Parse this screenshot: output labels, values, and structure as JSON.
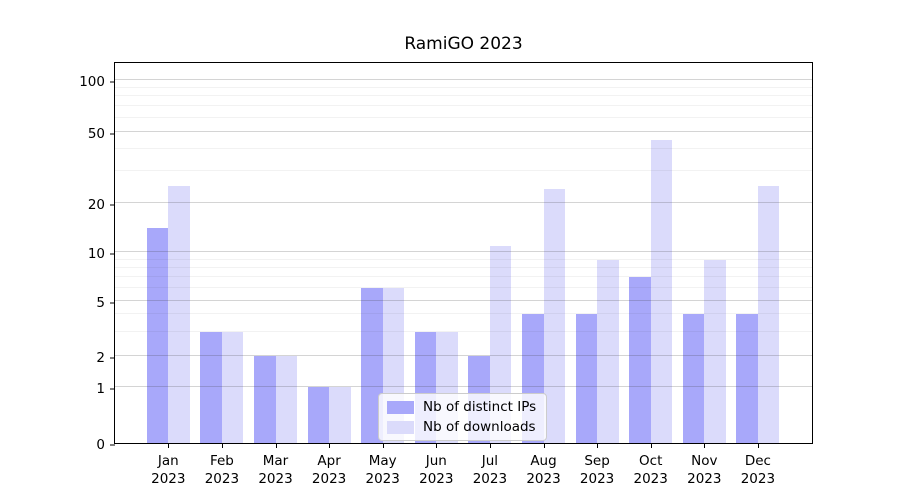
{
  "chart": {
    "title": "RamiGO 2023"
  },
  "chart_data": {
    "type": "bar",
    "title": "RamiGO 2023",
    "y_scale": "log",
    "ylim": [
      0,
      128
    ],
    "y_ticks": [
      0,
      1,
      2,
      5,
      10,
      20,
      50,
      100
    ],
    "minor_grid_values": [
      3,
      4,
      6,
      7,
      8,
      9,
      30,
      40,
      60,
      70,
      80,
      90
    ],
    "grid": "horizontal major + minor (log), drawn over bars",
    "legend_position": "lower center",
    "categories": [
      "Jan 2023",
      "Feb 2023",
      "Mar 2023",
      "Apr 2023",
      "May 2023",
      "Jun 2023",
      "Jul 2023",
      "Aug 2023",
      "Sep 2023",
      "Oct 2023",
      "Nov 2023",
      "Dec 2023"
    ],
    "month_labels": [
      "Jan",
      "Feb",
      "Mar",
      "Apr",
      "May",
      "Jun",
      "Jul",
      "Aug",
      "Sep",
      "Oct",
      "Nov",
      "Dec"
    ],
    "year_label": "2023",
    "series": [
      {
        "name": "Nb of distinct IPs",
        "color": "#a8a8fa",
        "values": [
          14,
          3,
          2,
          1,
          6,
          3,
          2,
          4,
          4,
          7,
          4,
          4
        ]
      },
      {
        "name": "Nb of downloads",
        "color": "#dbdbfb",
        "values": [
          25,
          3,
          2,
          1,
          6,
          3,
          11,
          24,
          9,
          45,
          9,
          25
        ]
      }
    ]
  }
}
